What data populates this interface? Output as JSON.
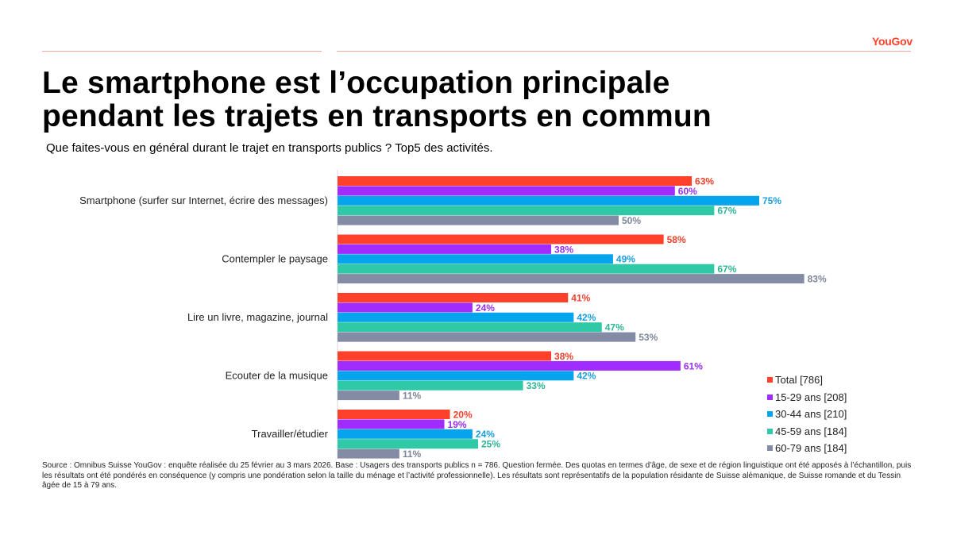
{
  "header": {
    "logo": "YouGov",
    "title_line1": "Le smartphone est l’occupation principale",
    "title_line2": "pendant les trajets en transports en commun",
    "subtitle": "Que faites-vous en général durant le trajet en transports publics ? Top5 des activités."
  },
  "chart_data": {
    "type": "bar",
    "orientation": "horizontal",
    "title": "Que faites-vous en général durant le trajet en transports publics ? Top5 des activités.",
    "categories": [
      "Smartphone (surfer sur Internet, écrire des messages)",
      "Contempler le paysage",
      "Lire un livre, magazine, journal",
      "Ecouter de la musique",
      "Travailler/étudier"
    ],
    "series": [
      {
        "name": "Total [786]",
        "color": "#ff412c",
        "label_color": "#f0402a",
        "values": [
          63,
          58,
          41,
          38,
          20
        ]
      },
      {
        "name": "15-29 ans [208]",
        "color": "#a02cff",
        "label_color": "#9a2ef0",
        "values": [
          60,
          38,
          24,
          61,
          19
        ]
      },
      {
        "name": "30-44 ans [210]",
        "color": "#05a4ec",
        "label_color": "#1a9ee0",
        "values": [
          75,
          49,
          42,
          42,
          24
        ]
      },
      {
        "name": "45-59 ans [184]",
        "color": "#30c9a7",
        "label_color": "#2fb594",
        "values": [
          67,
          67,
          47,
          33,
          25
        ]
      },
      {
        "name": "60-79 ans [184]",
        "color": "#838ca4",
        "label_color": "#7d8599",
        "values": [
          50,
          83,
          53,
          11,
          11
        ]
      }
    ],
    "value_suffix": "%",
    "xlim": [
      0,
      100
    ],
    "legend_position": "bottom-right",
    "grid": false
  },
  "footer": {
    "source": "Source : Omnibus Suisse YouGov : enquête réalisée du 25 février au 3 mars 2026. Base : Usagers des transports publics n = 786. Question fermée. Des quotas en termes d’âge, de sexe et de région linguistique ont été apposés à l’échantillon, puis les résultats ont été pondérés en conséquence (y compris une pondération selon la taille du ménage et l’activité professionnelle). Les résultats sont représentatifs de la population résidante de Suisse alémanique, de Suisse romande et du Tessin âgée de 15 à 79 ans."
  }
}
